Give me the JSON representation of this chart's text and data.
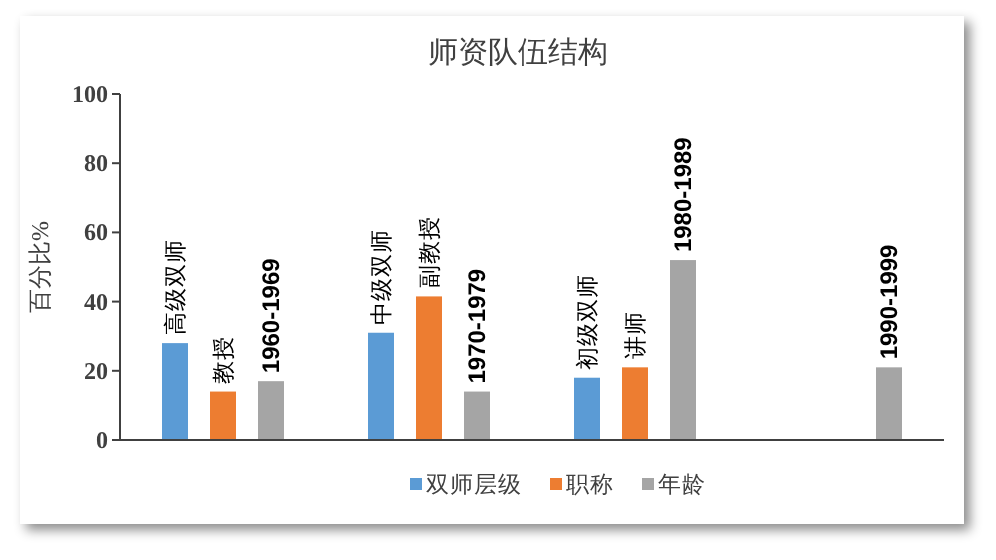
{
  "chart_data": {
    "type": "bar",
    "title": "师资队伍结构",
    "ylabel": "百分比%",
    "categories": [
      null,
      null,
      null,
      null
    ],
    "series": [
      {
        "name": "双师层级",
        "color": "#5b9bd5",
        "values": [
          28,
          31,
          18,
          null
        ],
        "value_labels": [
          "高级双师",
          "中级双师",
          "初级双师",
          null
        ]
      },
      {
        "name": "职称",
        "color": "#ed7d31",
        "values": [
          14,
          41.5,
          21,
          null
        ],
        "value_labels": [
          "教授",
          "副教授",
          "讲师",
          null
        ]
      },
      {
        "name": "年龄",
        "color": "#a5a5a5",
        "values": [
          17,
          14,
          52,
          21
        ],
        "value_labels": [
          "1960-1969",
          "1970-1979",
          "1980-1989",
          "1990-1999"
        ]
      }
    ],
    "ylim": [
      0,
      100
    ],
    "yticks": [
      0,
      20,
      40,
      60,
      80,
      100
    ],
    "grid": false,
    "legend": "bottom"
  }
}
